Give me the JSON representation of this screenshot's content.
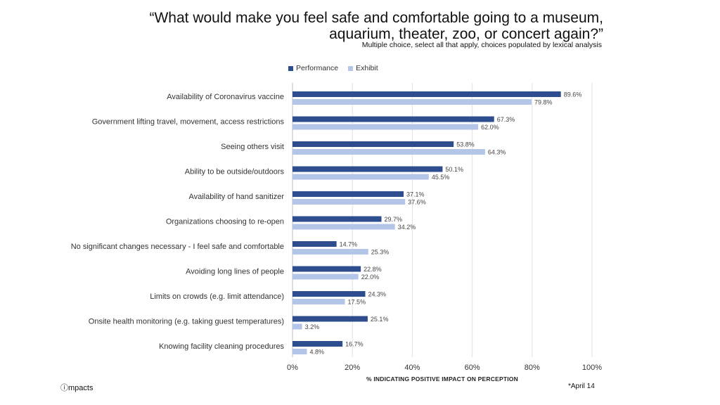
{
  "header": {
    "title_line1": "“What would make you feel safe and comfortable going to a museum,",
    "title_line2": "aquarium, theater, zoo, or concert again?”",
    "subtitle": "Multiple choice, select all that apply, choices populated by lexical analysis"
  },
  "footer": {
    "logo": "ⓘmpacts",
    "note": "*April 14"
  },
  "colors": {
    "performance": "#2e4d8f",
    "exhibit": "#b4c6e7",
    "grid": "#e2e2e2"
  },
  "chart_data": {
    "type": "bar",
    "orientation": "horizontal",
    "title": "“What would make you feel safe and comfortable going to a museum, aquarium, theater, zoo, or concert again?”",
    "xlabel": "% INDICATING POSITIVE IMPACT ON PERCEPTION",
    "ylabel": "",
    "xlim": [
      0,
      100
    ],
    "ticks": [
      0,
      20,
      40,
      60,
      80,
      100
    ],
    "tick_labels": [
      "0%",
      "20%",
      "40%",
      "60%",
      "80%",
      "100%"
    ],
    "grid": true,
    "legend_position": "top",
    "categories": [
      "Availability of Coronavirus vaccine",
      "Government lifting travel, movement, access restrictions",
      "Seeing others visit",
      "Ability to be outside/outdoors",
      "Availability of hand sanitizer",
      "Organizations choosing to re-open",
      "No significant changes necessary - I feel safe and comfortable",
      "Avoiding long lines of people",
      "Limits on crowds (e.g. limit attendance)",
      "Onsite health monitoring (e.g. taking guest temperatures)",
      "Knowing facility cleaning procedures"
    ],
    "series": [
      {
        "name": "Performance",
        "values": [
          89.6,
          67.3,
          53.8,
          50.1,
          37.1,
          29.7,
          14.7,
          22.8,
          24.3,
          25.1,
          16.7
        ],
        "labels": [
          "89.6%",
          "67.3%",
          "53.8%",
          "50.1%",
          "37.1%",
          "29.7%",
          "14.7%",
          "22.8%",
          "24.3%",
          "25.1%",
          "16.7%"
        ]
      },
      {
        "name": "Exhibit",
        "values": [
          79.8,
          62.0,
          64.3,
          45.5,
          37.6,
          34.2,
          25.3,
          22.0,
          17.5,
          3.2,
          4.8
        ],
        "labels": [
          "79.8%",
          "62.0%",
          "64.3%",
          "45.5%",
          "37.6%",
          "34.2%",
          "25.3%",
          "22.0%",
          "17.5%",
          "3.2%",
          "4.8%"
        ]
      }
    ]
  }
}
